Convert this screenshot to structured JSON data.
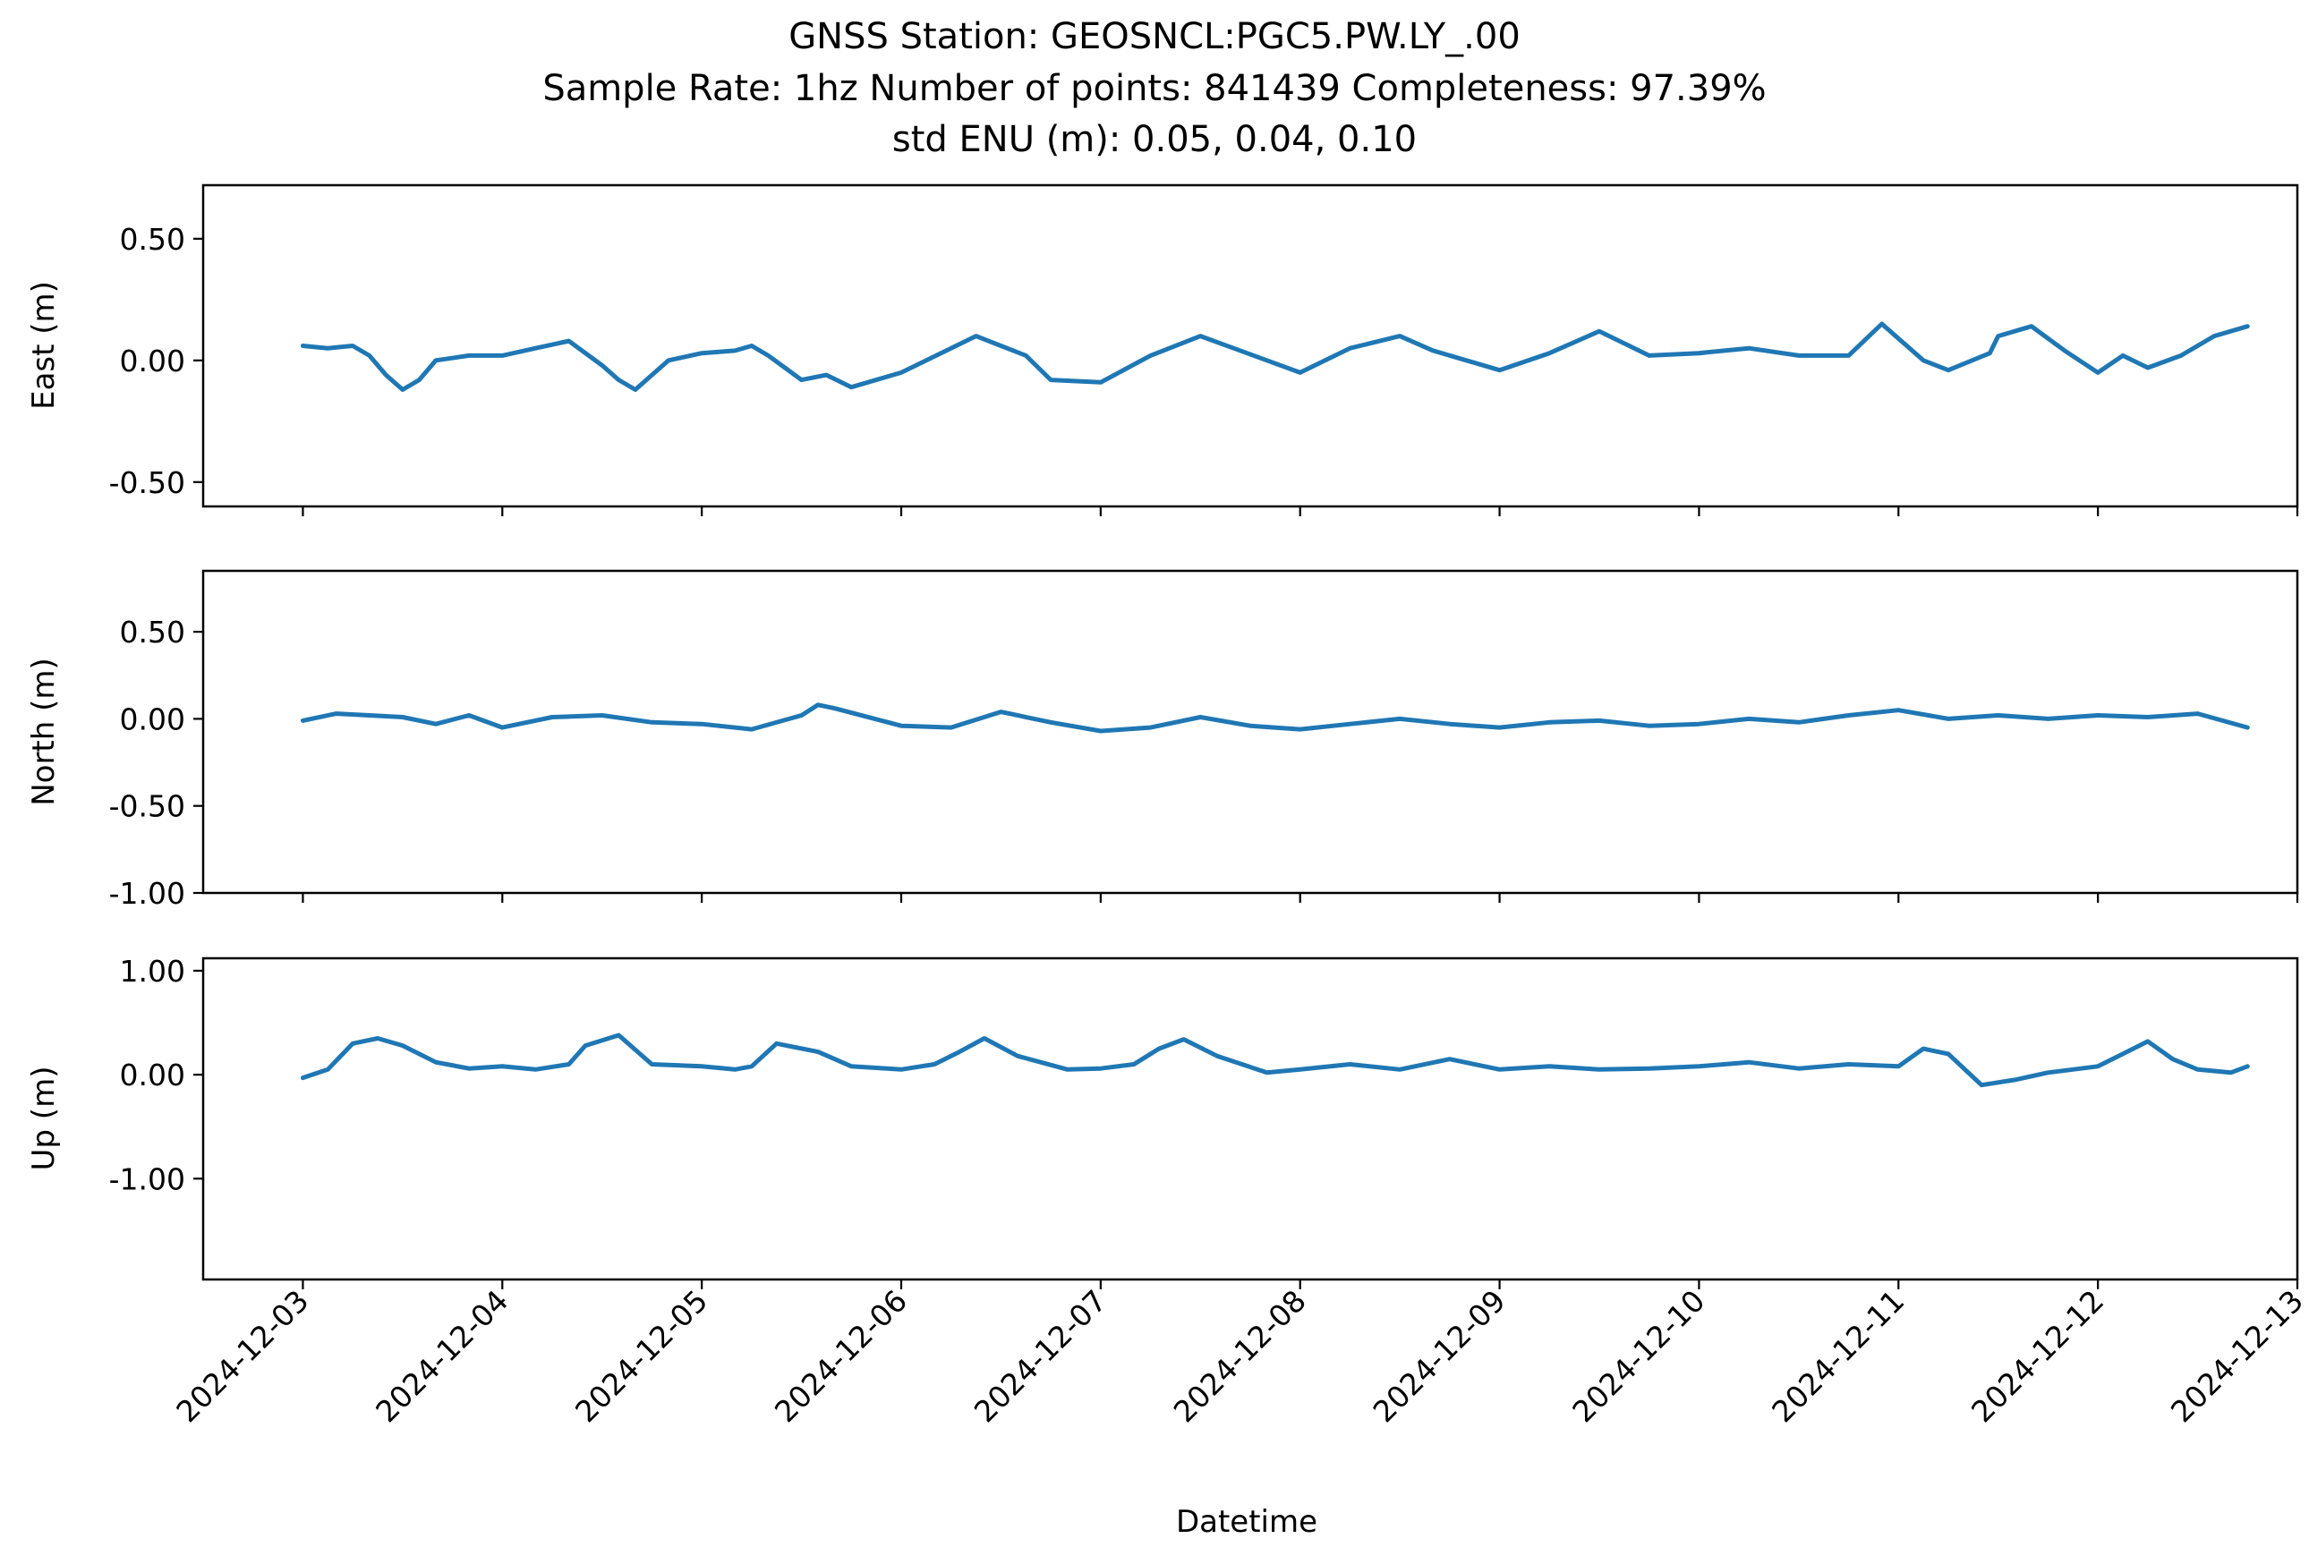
{
  "figure": {
    "title_lines": [
      "GNSS Station: GEOSNCL:PGC5.PW.LY_.00",
      "Sample Rate: 1hz   Number of points: 841439    Completeness:  97.39%",
      "std ENU (m):  0.05, 0.04, 0.10"
    ],
    "xlabel": "Datetime",
    "line_color": "#1f77b4"
  },
  "chart_data": [
    {
      "type": "line",
      "ylabel": "East (m)",
      "ylim": [
        -0.6,
        0.72
      ],
      "yticks": [
        0.5,
        0.0,
        -0.5
      ],
      "ytick_labels": [
        "0.50",
        "0.00",
        "-0.50"
      ],
      "xlim": [
        "2024-12-02 12:00",
        "2024-12-13 00:00"
      ],
      "xticks": [
        "2024-12-03",
        "2024-12-04",
        "2024-12-05",
        "2024-12-06",
        "2024-12-07",
        "2024-12-08",
        "2024-12-09",
        "2024-12-10",
        "2024-12-11",
        "2024-12-12",
        "2024-12-13"
      ],
      "x_tick_labels_visible": false,
      "grid": false,
      "series": [
        {
          "x": [
            "2024-12-03 00:00",
            "2024-12-03 03:00",
            "2024-12-03 06:00",
            "2024-12-03 08:00",
            "2024-12-03 10:00",
            "2024-12-03 12:00",
            "2024-12-03 14:00",
            "2024-12-03 16:00",
            "2024-12-03 20:00",
            "2024-12-04 00:00",
            "2024-12-04 04:00",
            "2024-12-04 08:00",
            "2024-12-04 12:00",
            "2024-12-04 14:00",
            "2024-12-04 16:00",
            "2024-12-04 20:00",
            "2024-12-05 00:00",
            "2024-12-05 04:00",
            "2024-12-05 06:00",
            "2024-12-05 08:00",
            "2024-12-05 12:00",
            "2024-12-05 15:00",
            "2024-12-05 18:00",
            "2024-12-06 00:00",
            "2024-12-06 06:00",
            "2024-12-06 09:00",
            "2024-12-06 12:00",
            "2024-12-06 15:00",
            "2024-12-06 18:00",
            "2024-12-07 00:00",
            "2024-12-07 06:00",
            "2024-12-07 12:00",
            "2024-12-07 16:00",
            "2024-12-07 20:00",
            "2024-12-08 00:00",
            "2024-12-08 06:00",
            "2024-12-08 12:00",
            "2024-12-08 16:00",
            "2024-12-08 20:00",
            "2024-12-09 00:00",
            "2024-12-09 06:00",
            "2024-12-09 12:00",
            "2024-12-09 18:00",
            "2024-12-10 00:00",
            "2024-12-10 06:00",
            "2024-12-10 12:00",
            "2024-12-10 18:00",
            "2024-12-10 22:00",
            "2024-12-11 03:00",
            "2024-12-11 06:00",
            "2024-12-11 11:00",
            "2024-12-11 12:00",
            "2024-12-11 16:00",
            "2024-12-11 20:00",
            "2024-12-12 00:00",
            "2024-12-12 03:00",
            "2024-12-12 06:00",
            "2024-12-12 10:00",
            "2024-12-12 14:00",
            "2024-12-12 18:00"
          ],
          "y": [
            0.06,
            0.05,
            0.06,
            0.02,
            -0.06,
            -0.12,
            -0.08,
            0.0,
            0.02,
            0.02,
            0.05,
            0.08,
            -0.02,
            -0.08,
            -0.12,
            0.0,
            0.03,
            0.04,
            0.06,
            0.02,
            -0.08,
            -0.06,
            -0.11,
            -0.05,
            0.05,
            0.1,
            0.06,
            0.02,
            -0.08,
            -0.09,
            0.02,
            0.1,
            0.05,
            0.0,
            -0.05,
            0.05,
            0.1,
            0.04,
            0.0,
            -0.04,
            0.03,
            0.12,
            0.02,
            0.03,
            0.05,
            0.02,
            0.02,
            0.15,
            0.0,
            -0.04,
            0.03,
            0.1,
            0.14,
            0.04,
            -0.05,
            0.02,
            -0.03,
            0.02,
            0.1,
            0.14
          ]
        }
      ]
    },
    {
      "type": "line",
      "ylabel": "North (m)",
      "ylim": [
        -1.0,
        0.85
      ],
      "yticks": [
        0.5,
        0.0,
        -0.5,
        -1.0
      ],
      "ytick_labels": [
        "0.50",
        "0.00",
        "-0.50",
        "-1.00"
      ],
      "xlim": [
        "2024-12-02 12:00",
        "2024-12-13 00:00"
      ],
      "xticks": [
        "2024-12-03",
        "2024-12-04",
        "2024-12-05",
        "2024-12-06",
        "2024-12-07",
        "2024-12-08",
        "2024-12-09",
        "2024-12-10",
        "2024-12-11",
        "2024-12-12",
        "2024-12-13"
      ],
      "x_tick_labels_visible": false,
      "grid": false,
      "series": [
        {
          "x": [
            "2024-12-03 00:00",
            "2024-12-03 04:00",
            "2024-12-03 08:00",
            "2024-12-03 12:00",
            "2024-12-03 16:00",
            "2024-12-03 20:00",
            "2024-12-04 00:00",
            "2024-12-04 06:00",
            "2024-12-04 12:00",
            "2024-12-04 18:00",
            "2024-12-05 00:00",
            "2024-12-05 06:00",
            "2024-12-05 12:00",
            "2024-12-05 14:00",
            "2024-12-05 16:00",
            "2024-12-06 00:00",
            "2024-12-06 06:00",
            "2024-12-06 12:00",
            "2024-12-06 18:00",
            "2024-12-07 00:00",
            "2024-12-07 06:00",
            "2024-12-07 12:00",
            "2024-12-07 18:00",
            "2024-12-08 00:00",
            "2024-12-08 06:00",
            "2024-12-08 12:00",
            "2024-12-08 18:00",
            "2024-12-09 00:00",
            "2024-12-09 06:00",
            "2024-12-09 12:00",
            "2024-12-09 18:00",
            "2024-12-10 00:00",
            "2024-12-10 06:00",
            "2024-12-10 12:00",
            "2024-12-10 18:00",
            "2024-12-11 00:00",
            "2024-12-11 06:00",
            "2024-12-11 12:00",
            "2024-12-11 18:00",
            "2024-12-12 00:00",
            "2024-12-12 06:00",
            "2024-12-12 12:00",
            "2024-12-12 18:00"
          ],
          "y": [
            -0.01,
            0.03,
            0.02,
            0.01,
            -0.03,
            0.02,
            -0.05,
            0.01,
            0.02,
            -0.02,
            -0.03,
            -0.06,
            0.02,
            0.08,
            0.06,
            -0.04,
            -0.05,
            0.04,
            -0.02,
            -0.07,
            -0.05,
            0.01,
            -0.04,
            -0.06,
            -0.03,
            0.0,
            -0.03,
            -0.05,
            -0.02,
            -0.01,
            -0.04,
            -0.03,
            0.0,
            -0.02,
            0.02,
            0.05,
            0.0,
            0.02,
            0.0,
            0.02,
            0.01,
            0.03,
            -0.05
          ]
        }
      ]
    },
    {
      "type": "line",
      "ylabel": "Up (m)",
      "ylim": [
        -1.97,
        1.12
      ],
      "yticks": [
        1.0,
        0.0,
        -1.0
      ],
      "ytick_labels": [
        "1.00",
        "0.00",
        "-1.00"
      ],
      "xlim": [
        "2024-12-02 12:00",
        "2024-12-13 00:00"
      ],
      "xticks": [
        "2024-12-03",
        "2024-12-04",
        "2024-12-05",
        "2024-12-06",
        "2024-12-07",
        "2024-12-08",
        "2024-12-09",
        "2024-12-10",
        "2024-12-11",
        "2024-12-12",
        "2024-12-13"
      ],
      "xtick_labels": [
        "2024-12-03",
        "2024-12-04",
        "2024-12-05",
        "2024-12-06",
        "2024-12-07",
        "2024-12-08",
        "2024-12-09",
        "2024-12-10",
        "2024-12-11",
        "2024-12-12",
        "2024-12-13"
      ],
      "grid": false,
      "series": [
        {
          "x": [
            "2024-12-03 00:00",
            "2024-12-03 03:00",
            "2024-12-03 06:00",
            "2024-12-03 09:00",
            "2024-12-03 12:00",
            "2024-12-03 16:00",
            "2024-12-03 20:00",
            "2024-12-04 00:00",
            "2024-12-04 04:00",
            "2024-12-04 08:00",
            "2024-12-04 10:00",
            "2024-12-04 14:00",
            "2024-12-04 18:00",
            "2024-12-05 00:00",
            "2024-12-05 04:00",
            "2024-12-05 06:00",
            "2024-12-05 09:00",
            "2024-12-05 14:00",
            "2024-12-05 18:00",
            "2024-12-06 00:00",
            "2024-12-06 04:00",
            "2024-12-06 07:00",
            "2024-12-06 10:00",
            "2024-12-06 14:00",
            "2024-12-06 20:00",
            "2024-12-07 00:00",
            "2024-12-07 04:00",
            "2024-12-07 07:00",
            "2024-12-07 10:00",
            "2024-12-07 14:00",
            "2024-12-07 20:00",
            "2024-12-08 00:00",
            "2024-12-08 06:00",
            "2024-12-08 12:00",
            "2024-12-08 18:00",
            "2024-12-09 00:00",
            "2024-12-09 06:00",
            "2024-12-09 12:00",
            "2024-12-09 18:00",
            "2024-12-10 00:00",
            "2024-12-10 06:00",
            "2024-12-10 12:00",
            "2024-12-10 18:00",
            "2024-12-11 00:00",
            "2024-12-11 03:00",
            "2024-12-11 06:00",
            "2024-12-11 10:00",
            "2024-12-11 14:00",
            "2024-12-11 18:00",
            "2024-12-12 00:00",
            "2024-12-12 03:00",
            "2024-12-12 06:00",
            "2024-12-12 09:00",
            "2024-12-12 12:00",
            "2024-12-12 16:00",
            "2024-12-12 18:00"
          ],
          "y": [
            -0.03,
            0.05,
            0.3,
            0.35,
            0.28,
            0.12,
            0.06,
            0.08,
            0.05,
            0.1,
            0.28,
            0.38,
            0.1,
            0.08,
            0.05,
            0.08,
            0.3,
            0.22,
            0.08,
            0.05,
            0.1,
            0.22,
            0.35,
            0.18,
            0.05,
            0.06,
            0.1,
            0.25,
            0.34,
            0.18,
            0.02,
            0.05,
            0.1,
            0.05,
            0.15,
            0.05,
            0.08,
            0.05,
            0.06,
            0.08,
            0.12,
            0.06,
            0.1,
            0.08,
            0.25,
            0.2,
            -0.1,
            -0.05,
            0.02,
            0.08,
            0.2,
            0.32,
            0.15,
            0.05,
            0.02,
            0.08
          ]
        }
      ]
    }
  ]
}
